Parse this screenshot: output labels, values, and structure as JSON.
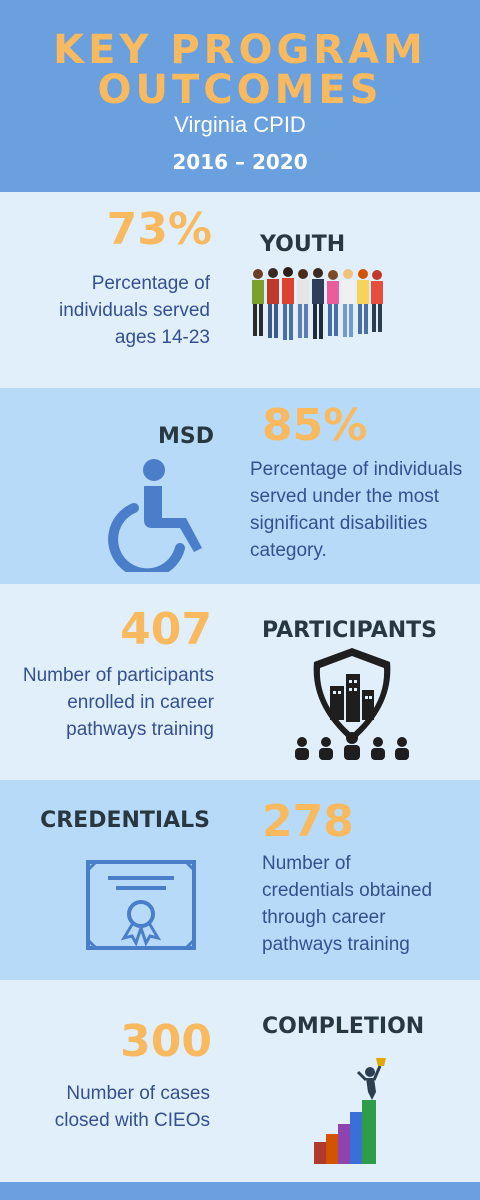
{
  "header": {
    "title_line1": "KEY PROGRAM",
    "title_line2": "OUTCOMES",
    "subtitle": "Virginia CPID",
    "years": "2016 – 2020"
  },
  "sections": [
    {
      "stat": "73%",
      "label": "YOUTH",
      "desc_lines": [
        "Percentage of",
        "individuals served",
        "ages 14-23"
      ],
      "icon": "youth-group-icon"
    },
    {
      "stat": "85%",
      "label": "MSD",
      "desc_lines": [
        "Percentage of individuals",
        "served under the most",
        "significant disabilities",
        "category."
      ],
      "icon": "wheelchair-icon"
    },
    {
      "stat": "407",
      "label": "PARTICIPANTS",
      "desc_lines": [
        "Number of participants",
        "enrolled in career",
        "pathways training"
      ],
      "icon": "shield-building-people-icon"
    },
    {
      "stat": "278",
      "label": "CREDENTIALS",
      "desc_lines": [
        "Number of",
        "credentials obtained",
        "through career",
        "pathways training"
      ],
      "icon": "certificate-icon"
    },
    {
      "stat": "300",
      "label": "COMPLETION",
      "desc_lines": [
        "Number of cases",
        "closed with CIEOs"
      ],
      "icon": "success-stairs-icon"
    }
  ],
  "colors": {
    "header_bg": "#6aa0de",
    "band_light": "#e1effb",
    "band_mid": "#b7daf8",
    "accent_orange": "#f9b95f",
    "label_dark": "#283841",
    "desc_blue": "#34508f",
    "icon_blue": "#4a7ec9"
  }
}
